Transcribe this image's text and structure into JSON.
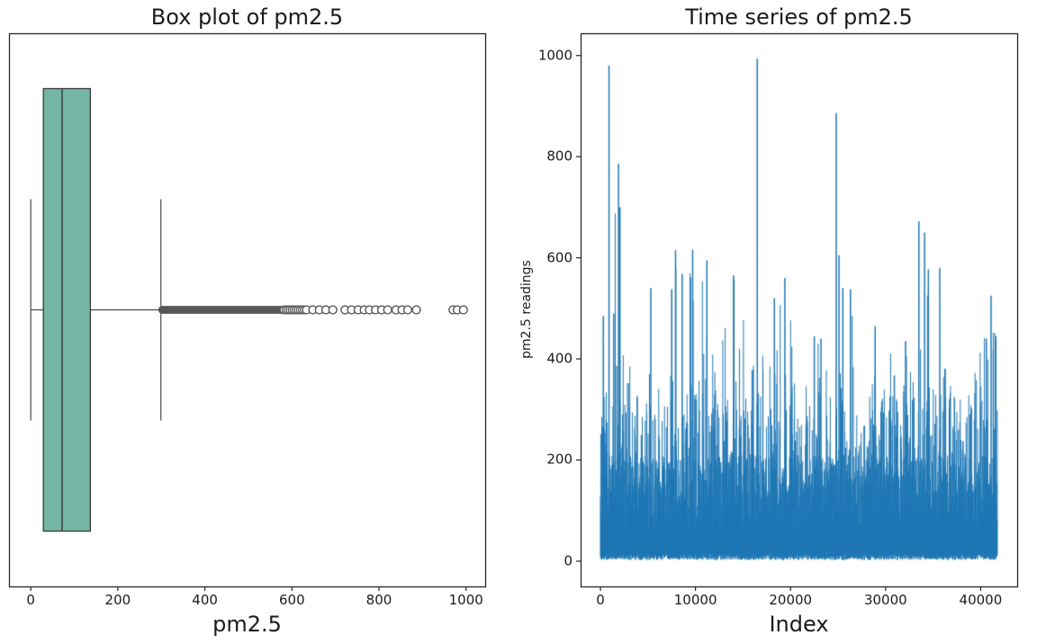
{
  "colors": {
    "background": "#ffffff",
    "text": "#1b1b1b",
    "spine": "#262626",
    "timeseries_line": "#1f77b4",
    "box_fill": "#74b6a3",
    "box_edge": "#3a3a3a",
    "whisker": "#4a4a4a",
    "flier": "#575757"
  },
  "chart_data": [
    {
      "type": "box",
      "title": "Box plot of pm2.5",
      "xlabel": "pm2.5",
      "orientation": "horizontal",
      "grid": false,
      "xlim": [
        -50,
        1044
      ],
      "xticks": [
        0,
        200,
        400,
        600,
        800,
        1000
      ],
      "stats": {
        "whisker_low": 0,
        "q1": 29,
        "median": 72,
        "q3": 137,
        "whisker_high": 299
      },
      "outliers_dense_range": [
        302,
        580
      ],
      "outliers_medium_range": [
        582,
        634
      ],
      "outliers_sparse": [
        648,
        663,
        678,
        694,
        722,
        737,
        752,
        766,
        778,
        792,
        806,
        820,
        839,
        853,
        866,
        886,
        970,
        980,
        994
      ],
      "colors": {
        "box_fill": "#74b6a3",
        "box_edge": "#3a3a3a",
        "whisker": "#4a4a4a",
        "flier": "#575757"
      }
    },
    {
      "type": "line",
      "title": "Time series of pm2.5",
      "xlabel": "Index",
      "ylabel": "pm2.5 readings",
      "grid": false,
      "legend": false,
      "line_color": "#1f77b4",
      "n_points": 41757,
      "xlim": [
        -2088,
        43845
      ],
      "ylim": [
        -50,
        1044
      ],
      "xticks": [
        0,
        10000,
        20000,
        30000,
        40000
      ],
      "yticks": [
        0,
        200,
        400,
        600,
        800,
        1000
      ],
      "y_min_observed": 0,
      "y_max_observed": 994,
      "baseline_range": [
        0,
        15
      ],
      "typical_band": [
        60,
        330
      ],
      "noise_seed": 42,
      "envelope": [
        [
          0,
          500
        ],
        [
          1500,
          800
        ],
        [
          2500,
          450
        ],
        [
          4000,
          330
        ],
        [
          5500,
          560
        ],
        [
          7000,
          500
        ],
        [
          8000,
          620
        ],
        [
          9700,
          620
        ],
        [
          11000,
          600
        ],
        [
          12500,
          420
        ],
        [
          14000,
          570
        ],
        [
          15500,
          480
        ],
        [
          16800,
          560
        ],
        [
          18000,
          530
        ],
        [
          19500,
          565
        ],
        [
          21000,
          400
        ],
        [
          22500,
          450
        ],
        [
          24000,
          520
        ],
        [
          25200,
          610
        ],
        [
          26500,
          545
        ],
        [
          28000,
          470
        ],
        [
          29500,
          400
        ],
        [
          31000,
          420
        ],
        [
          32500,
          450
        ],
        [
          33800,
          590
        ],
        [
          35000,
          580
        ],
        [
          36500,
          460
        ],
        [
          38000,
          330
        ],
        [
          39500,
          400
        ],
        [
          40800,
          530
        ],
        [
          41757,
          450
        ]
      ],
      "peaks": [
        [
          300,
          485
        ],
        [
          900,
          980
        ],
        [
          1400,
          490
        ],
        [
          1900,
          786
        ],
        [
          2050,
          700
        ],
        [
          5300,
          540
        ],
        [
          7500,
          538
        ],
        [
          7900,
          615
        ],
        [
          8600,
          568
        ],
        [
          9700,
          616
        ],
        [
          11200,
          595
        ],
        [
          14000,
          565
        ],
        [
          16500,
          994
        ],
        [
          18300,
          520
        ],
        [
          19400,
          560
        ],
        [
          22500,
          445
        ],
        [
          23200,
          440
        ],
        [
          24800,
          886
        ],
        [
          25100,
          605
        ],
        [
          25500,
          540
        ],
        [
          26300,
          538
        ],
        [
          28900,
          465
        ],
        [
          32100,
          435
        ],
        [
          33500,
          672
        ],
        [
          34100,
          650
        ],
        [
          34500,
          577
        ],
        [
          35700,
          580
        ],
        [
          40600,
          440
        ],
        [
          41100,
          525
        ],
        [
          41600,
          445
        ]
      ]
    }
  ]
}
